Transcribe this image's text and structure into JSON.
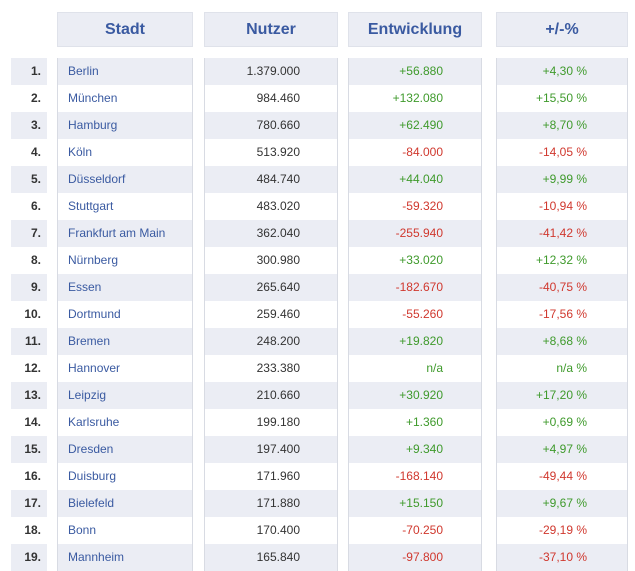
{
  "headers": {
    "city": "Stadt",
    "users": "Nutzer",
    "development": "Entwicklung",
    "percent": "+/-%"
  },
  "colors": {
    "header_text": "#3a5aa1",
    "positive": "#3f9a2c",
    "negative": "#d0382e",
    "stripe": "#ebedf4"
  },
  "rows": [
    {
      "rank": "1.",
      "city": "Berlin",
      "users": "1.379.000",
      "dev": "+56.880",
      "pct": "+4,30 %"
    },
    {
      "rank": "2.",
      "city": "München",
      "users": "984.460",
      "dev": "+132.080",
      "pct": "+15,50 %"
    },
    {
      "rank": "3.",
      "city": "Hamburg",
      "users": "780.660",
      "dev": "+62.490",
      "pct": "+8,70 %"
    },
    {
      "rank": "4.",
      "city": "Köln",
      "users": "513.920",
      "dev": "-84.000",
      "pct": "-14,05 %"
    },
    {
      "rank": "5.",
      "city": "Düsseldorf",
      "users": "484.740",
      "dev": "+44.040",
      "pct": "+9,99 %"
    },
    {
      "rank": "6.",
      "city": "Stuttgart",
      "users": "483.020",
      "dev": "-59.320",
      "pct": "-10,94 %"
    },
    {
      "rank": "7.",
      "city": "Frankfurt am Main",
      "users": "362.040",
      "dev": "-255.940",
      "pct": "-41,42 %"
    },
    {
      "rank": "8.",
      "city": "Nürnberg",
      "users": "300.980",
      "dev": "+33.020",
      "pct": "+12,32 %"
    },
    {
      "rank": "9.",
      "city": "Essen",
      "users": "265.640",
      "dev": "-182.670",
      "pct": "-40,75 %"
    },
    {
      "rank": "10.",
      "city": "Dortmund",
      "users": "259.460",
      "dev": "-55.260",
      "pct": "-17,56 %"
    },
    {
      "rank": "11.",
      "city": "Bremen",
      "users": "248.200",
      "dev": "+19.820",
      "pct": "+8,68 %"
    },
    {
      "rank": "12.",
      "city": "Hannover",
      "users": "233.380",
      "dev": "n/a",
      "pct": "n/a %"
    },
    {
      "rank": "13.",
      "city": "Leipzig",
      "users": "210.660",
      "dev": "+30.920",
      "pct": "+17,20 %"
    },
    {
      "rank": "14.",
      "city": "Karlsruhe",
      "users": "199.180",
      "dev": "+1.360",
      "pct": "+0,69 %"
    },
    {
      "rank": "15.",
      "city": "Dresden",
      "users": "197.400",
      "dev": "+9.340",
      "pct": "+4,97 %"
    },
    {
      "rank": "16.",
      "city": "Duisburg",
      "users": "171.960",
      "dev": "-168.140",
      "pct": "-49,44 %"
    },
    {
      "rank": "17.",
      "city": "Bielefeld",
      "users": "171.880",
      "dev": "+15.150",
      "pct": "+9,67 %"
    },
    {
      "rank": "18.",
      "city": "Bonn",
      "users": "170.400",
      "dev": "-70.250",
      "pct": "-29,19 %"
    },
    {
      "rank": "19.",
      "city": "Mannheim",
      "users": "165.840",
      "dev": "-97.800",
      "pct": "-37,10 %"
    }
  ]
}
